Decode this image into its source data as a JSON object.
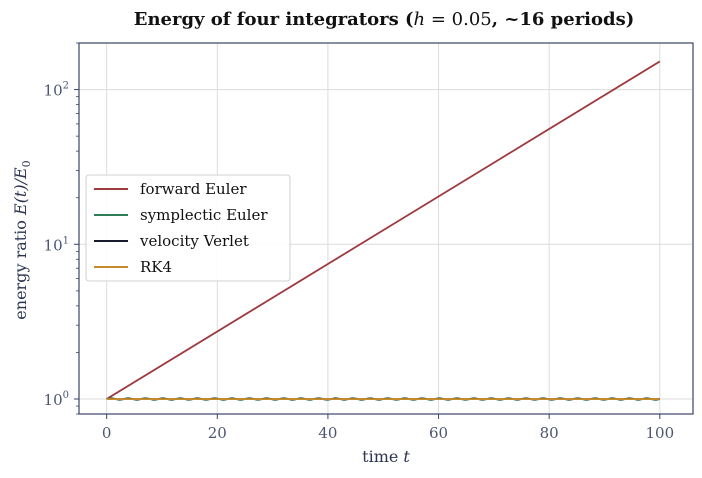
{
  "chart_data": {
    "type": "line",
    "title_parts": [
      "Energy of four integrators (",
      "h",
      " = 0.05",
      ", ~16 periods)"
    ],
    "xlabel_parts": [
      "time  ",
      "t"
    ],
    "ylabel_parts": [
      "energy ratio  ",
      "E(t)/E",
      "0"
    ],
    "xlim": [
      -5,
      106
    ],
    "ylim": [
      0.8,
      200
    ],
    "yscale": "log",
    "xticks": [
      0,
      20,
      40,
      60,
      80,
      100
    ],
    "xtick_labels": [
      "0",
      "20",
      "40",
      "60",
      "80",
      "100"
    ],
    "yticks": [
      1,
      10,
      100
    ],
    "ytick_labels": [
      [
        "10",
        "0"
      ],
      [
        "10",
        "1"
      ],
      [
        "10",
        "2"
      ]
    ],
    "grid": true,
    "legend_position": "center-left",
    "series": [
      {
        "name": "forward Euler",
        "color": "#9e3a3f",
        "model": "exponential",
        "x_range": [
          0,
          100
        ],
        "y_start": 1,
        "y_end": 152
      },
      {
        "name": "symplectic Euler",
        "color": "#2e7d55",
        "model": "oscillating",
        "x_range": [
          0,
          100
        ],
        "y_mean": 1.0,
        "y_amplitude": 0.012,
        "periods": 32
      },
      {
        "name": "velocity Verlet",
        "color": "#1a1a2e",
        "model": "oscillating",
        "x_range": [
          0,
          100
        ],
        "y_mean": 1.0,
        "y_amplitude": 0.003,
        "periods": 32
      },
      {
        "name": "RK4",
        "color": "#c98a2b",
        "model": "constant",
        "x_range": [
          0,
          100
        ],
        "y_value": 0.999
      }
    ]
  }
}
